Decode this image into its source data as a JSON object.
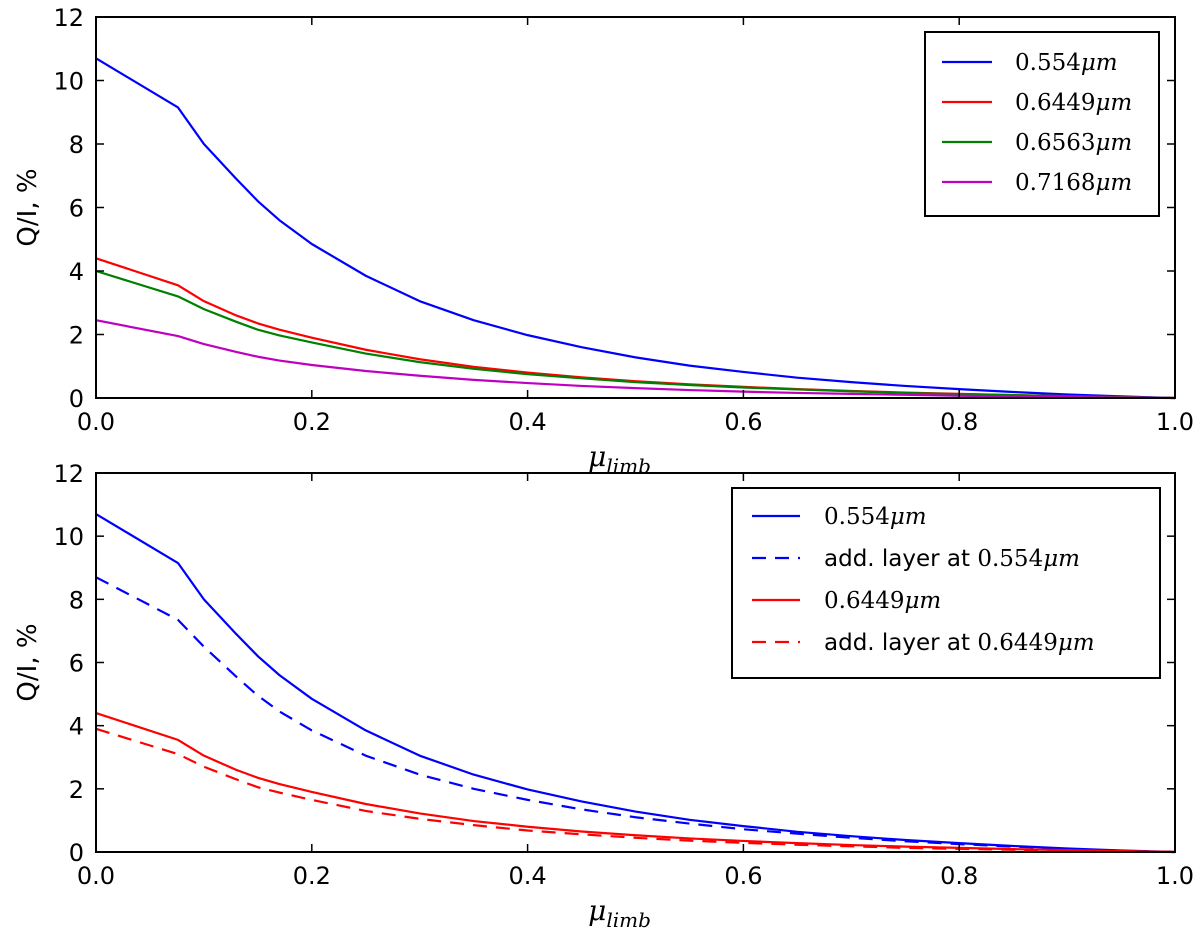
{
  "chart_data": [
    {
      "type": "line",
      "panel": "top",
      "title": "",
      "xlabel_main": "μ",
      "xlabel_sub": "limb",
      "ylabel": "Q/I, %",
      "xlim": [
        0.0,
        1.0
      ],
      "ylim": [
        0,
        12
      ],
      "xticks": [
        "0.0",
        "0.2",
        "0.4",
        "0.6",
        "0.8",
        "1.0"
      ],
      "yticks": [
        "0",
        "2",
        "4",
        "6",
        "8",
        "10",
        "12"
      ],
      "legend_position": "top-right",
      "x": [
        0.0,
        0.076,
        0.1,
        0.13,
        0.15,
        0.17,
        0.2,
        0.25,
        0.3,
        0.35,
        0.4,
        0.45,
        0.5,
        0.55,
        0.6,
        0.65,
        0.7,
        0.75,
        0.8,
        0.85,
        0.9,
        0.95,
        1.0
      ],
      "series": [
        {
          "name": "0.554μm",
          "label_num": "0.554",
          "label_unit": "μm",
          "color": "#0000ff",
          "dash": "solid",
          "values": [
            10.7,
            9.15,
            8.0,
            6.9,
            6.2,
            5.6,
            4.85,
            3.85,
            3.05,
            2.45,
            1.98,
            1.6,
            1.28,
            1.02,
            0.82,
            0.64,
            0.5,
            0.38,
            0.28,
            0.19,
            0.11,
            0.05,
            0.0
          ]
        },
        {
          "name": "0.6449μm",
          "label_num": "0.6449",
          "label_unit": "μm",
          "color": "#ff0000",
          "dash": "solid",
          "values": [
            4.4,
            3.55,
            3.05,
            2.6,
            2.35,
            2.15,
            1.9,
            1.52,
            1.22,
            0.98,
            0.8,
            0.65,
            0.53,
            0.43,
            0.35,
            0.28,
            0.22,
            0.17,
            0.13,
            0.09,
            0.06,
            0.03,
            0.0
          ]
        },
        {
          "name": "0.6563μm",
          "label_num": "0.6563",
          "label_unit": "μm",
          "color": "#008000",
          "dash": "solid",
          "values": [
            4.0,
            3.2,
            2.8,
            2.4,
            2.15,
            1.97,
            1.75,
            1.4,
            1.13,
            0.92,
            0.75,
            0.62,
            0.5,
            0.41,
            0.33,
            0.27,
            0.21,
            0.16,
            0.12,
            0.09,
            0.06,
            0.03,
            0.0
          ]
        },
        {
          "name": "0.7168μm",
          "label_num": "0.7168",
          "label_unit": "μm",
          "color": "#bf00bf",
          "dash": "solid",
          "values": [
            2.45,
            1.95,
            1.7,
            1.45,
            1.3,
            1.18,
            1.04,
            0.85,
            0.7,
            0.57,
            0.47,
            0.38,
            0.31,
            0.25,
            0.2,
            0.16,
            0.13,
            0.1,
            0.07,
            0.05,
            0.03,
            0.015,
            0.0
          ]
        }
      ]
    },
    {
      "type": "line",
      "panel": "bottom",
      "title": "",
      "xlabel_main": "μ",
      "xlabel_sub": "limb",
      "ylabel": "Q/I, %",
      "xlim": [
        0.0,
        1.0
      ],
      "ylim": [
        0,
        12
      ],
      "xticks": [
        "0.0",
        "0.2",
        "0.4",
        "0.6",
        "0.8",
        "1.0"
      ],
      "yticks": [
        "0",
        "2",
        "4",
        "6",
        "8",
        "10",
        "12"
      ],
      "legend_position": "top-right",
      "x": [
        0.0,
        0.076,
        0.1,
        0.13,
        0.15,
        0.17,
        0.2,
        0.25,
        0.3,
        0.35,
        0.4,
        0.45,
        0.5,
        0.55,
        0.6,
        0.65,
        0.7,
        0.75,
        0.8,
        0.85,
        0.9,
        0.95,
        1.0
      ],
      "series": [
        {
          "name": "0.554μm",
          "label_prefix": "",
          "label_num": "0.554",
          "label_unit": "μm",
          "color": "#0000ff",
          "dash": "solid",
          "values": [
            10.7,
            9.15,
            8.0,
            6.9,
            6.2,
            5.6,
            4.85,
            3.85,
            3.05,
            2.45,
            1.98,
            1.6,
            1.28,
            1.02,
            0.82,
            0.64,
            0.5,
            0.38,
            0.28,
            0.19,
            0.11,
            0.05,
            0.0
          ]
        },
        {
          "name": "add. layer at 0.554μm",
          "label_prefix": "add. layer at ",
          "label_num": "0.554",
          "label_unit": "μm",
          "color": "#0000ff",
          "dash": "dashed",
          "values": [
            8.7,
            7.35,
            6.5,
            5.55,
            4.95,
            4.45,
            3.85,
            3.05,
            2.45,
            2.0,
            1.65,
            1.35,
            1.1,
            0.9,
            0.72,
            0.58,
            0.45,
            0.34,
            0.25,
            0.17,
            0.1,
            0.04,
            0.0
          ]
        },
        {
          "name": "0.6449μm",
          "label_prefix": "",
          "label_num": "0.6449",
          "label_unit": "μm",
          "color": "#ff0000",
          "dash": "solid",
          "values": [
            4.4,
            3.55,
            3.05,
            2.6,
            2.35,
            2.15,
            1.9,
            1.52,
            1.22,
            0.98,
            0.8,
            0.65,
            0.53,
            0.43,
            0.35,
            0.28,
            0.22,
            0.17,
            0.13,
            0.09,
            0.06,
            0.03,
            0.0
          ]
        },
        {
          "name": "add. layer at 0.6449μm",
          "label_prefix": "add. layer at ",
          "label_num": "0.6449",
          "label_unit": "μm",
          "color": "#ff0000",
          "dash": "dashed",
          "values": [
            3.9,
            3.1,
            2.7,
            2.3,
            2.05,
            1.88,
            1.65,
            1.3,
            1.05,
            0.85,
            0.68,
            0.56,
            0.45,
            0.36,
            0.29,
            0.23,
            0.18,
            0.13,
            0.1,
            0.07,
            0.04,
            0.02,
            0.0
          ]
        }
      ]
    }
  ]
}
